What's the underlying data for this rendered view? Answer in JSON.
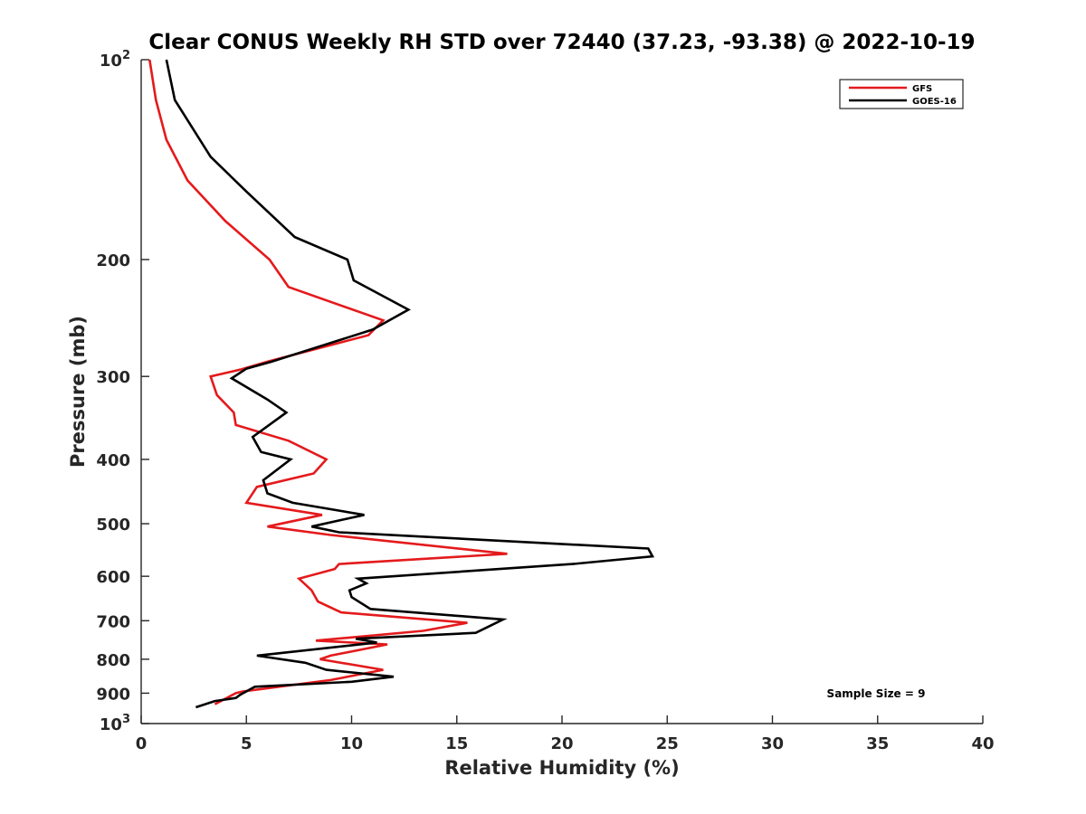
{
  "chart_data": {
    "type": "line",
    "title": "Clear CONUS Weekly RH STD over 72440 (37.23, -93.38) @ 2022-10-19",
    "xlabel": "Relative Humidity (%)",
    "ylabel": "Pressure (mb)",
    "xlim": [
      0,
      40
    ],
    "ylim": [
      100,
      1000
    ],
    "y_scale": "log",
    "y_reversed": true,
    "grid": false,
    "legend_position": "top-right",
    "x_ticks": [
      "0",
      "5",
      "10",
      "15",
      "20",
      "25",
      "30",
      "35",
      "40"
    ],
    "y_ticks": [
      {
        "value": 100,
        "base": "10",
        "exp": "2"
      },
      {
        "value": 200,
        "label": "200"
      },
      {
        "value": 300,
        "label": "300"
      },
      {
        "value": 400,
        "label": "400"
      },
      {
        "value": 500,
        "label": "500"
      },
      {
        "value": 600,
        "label": "600"
      },
      {
        "value": 700,
        "label": "700"
      },
      {
        "value": 800,
        "label": "800"
      },
      {
        "value": 900,
        "label": "900"
      },
      {
        "value": 1000,
        "base": "10",
        "exp": "3"
      }
    ],
    "annotation": "Sample Size = 9",
    "series": [
      {
        "name": "GFS",
        "color": "#e41a1c",
        "points": [
          [
            0.4,
            100
          ],
          [
            0.7,
            115
          ],
          [
            1.2,
            132
          ],
          [
            2.2,
            152
          ],
          [
            4.0,
            175
          ],
          [
            6.1,
            200
          ],
          [
            7.0,
            220
          ],
          [
            11.5,
            247
          ],
          [
            10.8,
            260
          ],
          [
            6.0,
            285
          ],
          [
            4.7,
            293
          ],
          [
            3.3,
            300
          ],
          [
            3.6,
            320
          ],
          [
            4.4,
            340
          ],
          [
            4.5,
            355
          ],
          [
            7.0,
            375
          ],
          [
            8.8,
            400
          ],
          [
            8.2,
            420
          ],
          [
            5.5,
            440
          ],
          [
            5.0,
            465
          ],
          [
            8.6,
            485
          ],
          [
            6.0,
            505
          ],
          [
            9.0,
            520
          ],
          [
            17.4,
            555
          ],
          [
            9.4,
            575
          ],
          [
            9.2,
            585
          ],
          [
            7.5,
            605
          ],
          [
            8.1,
            630
          ],
          [
            8.4,
            655
          ],
          [
            9.5,
            680
          ],
          [
            15.5,
            705
          ],
          [
            13.4,
            725
          ],
          [
            8.3,
            750
          ],
          [
            11.7,
            760
          ],
          [
            9.0,
            790
          ],
          [
            8.5,
            800
          ],
          [
            11.5,
            830
          ],
          [
            9.0,
            860
          ],
          [
            4.8,
            895
          ],
          [
            4.5,
            900
          ],
          [
            3.5,
            935
          ]
        ]
      },
      {
        "name": "GOES-16",
        "color": "#000000",
        "points": [
          [
            1.2,
            100
          ],
          [
            1.6,
            115
          ],
          [
            3.3,
            140
          ],
          [
            5.0,
            158
          ],
          [
            7.3,
            185
          ],
          [
            9.8,
            200
          ],
          [
            10.1,
            215
          ],
          [
            12.7,
            238
          ],
          [
            11.0,
            255
          ],
          [
            6.2,
            285
          ],
          [
            5.0,
            292
          ],
          [
            4.3,
            302
          ],
          [
            6.0,
            325
          ],
          [
            6.9,
            340
          ],
          [
            5.3,
            370
          ],
          [
            5.7,
            390
          ],
          [
            7.1,
            400
          ],
          [
            5.8,
            430
          ],
          [
            6.0,
            450
          ],
          [
            7.2,
            465
          ],
          [
            10.6,
            485
          ],
          [
            8.1,
            505
          ],
          [
            9.4,
            515
          ],
          [
            24.1,
            545
          ],
          [
            24.3,
            560
          ],
          [
            20.5,
            575
          ],
          [
            10.3,
            605
          ],
          [
            10.7,
            615
          ],
          [
            9.9,
            630
          ],
          [
            10.0,
            645
          ],
          [
            10.9,
            672
          ],
          [
            17.2,
            697
          ],
          [
            15.9,
            730
          ],
          [
            10.2,
            745
          ],
          [
            11.2,
            755
          ],
          [
            5.5,
            790
          ],
          [
            7.8,
            810
          ],
          [
            8.8,
            830
          ],
          [
            12.0,
            850
          ],
          [
            10.0,
            865
          ],
          [
            5.4,
            880
          ],
          [
            4.7,
            905
          ],
          [
            4.5,
            915
          ],
          [
            3.5,
            925
          ],
          [
            2.6,
            945
          ]
        ]
      }
    ]
  }
}
